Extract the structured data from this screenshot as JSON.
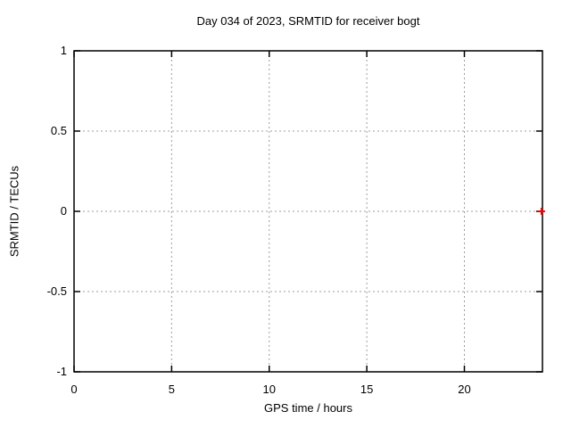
{
  "chart_data": {
    "type": "scatter",
    "title": "Day 034 of 2023, SRMTID for receiver bogt",
    "xlabel": "GPS time / hours",
    "ylabel": "SRMTID / TECUs",
    "xlim": [
      0,
      24
    ],
    "ylim": [
      -1,
      1
    ],
    "grid": true,
    "legend": "none",
    "xticks": [
      {
        "value": 0,
        "label": "0"
      },
      {
        "value": 5,
        "label": "5"
      },
      {
        "value": 10,
        "label": "10"
      },
      {
        "value": 15,
        "label": "15"
      },
      {
        "value": 20,
        "label": "20"
      }
    ],
    "yticks": [
      {
        "value": -1,
        "label": "-1"
      },
      {
        "value": -0.5,
        "label": "-0.5"
      },
      {
        "value": 0,
        "label": "0"
      },
      {
        "value": 0.5,
        "label": "0.5"
      },
      {
        "value": 1,
        "label": "1"
      }
    ],
    "series": [
      {
        "name": "SRMTID",
        "marker": "plus",
        "color": "#ff0000",
        "points": [
          {
            "x": 23.95,
            "y": 0.0
          }
        ]
      }
    ],
    "colors": {
      "background": "#ffffff",
      "border": "#000000",
      "grid": "#9e9e9e",
      "text": "#000000"
    }
  }
}
